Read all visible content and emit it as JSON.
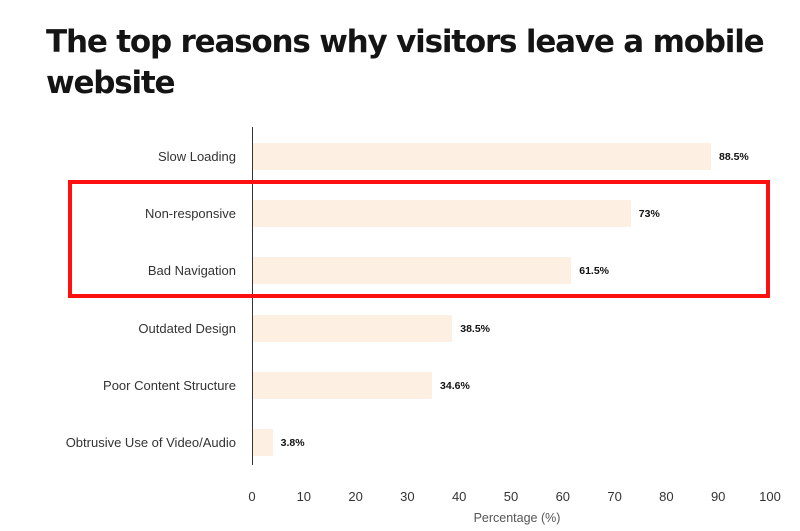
{
  "title": "The top reasons why visitors leave a mobile website",
  "chart_data": {
    "type": "bar",
    "orientation": "horizontal",
    "title": "The top reasons why visitors leave a mobile website",
    "categories": [
      "Slow Loading",
      "Non-responsive",
      "Bad Navigation",
      "Outdated Design",
      "Poor Content Structure",
      "Obtrusive Use of Video/Audio"
    ],
    "values": [
      88.5,
      73,
      61.5,
      38.5,
      34.6,
      3.8
    ],
    "value_labels": [
      "88.5%",
      "73%",
      "61.5%",
      "38.5%",
      "34.6%",
      "3.8%"
    ],
    "xlabel": "Percentage (%)",
    "ylabel": "",
    "xlim": [
      0,
      100
    ],
    "xticks": [
      "0",
      "10",
      "20",
      "30",
      "40",
      "50",
      "60",
      "70",
      "80",
      "90",
      "100"
    ],
    "grid": false,
    "legend": null,
    "bar_color": "#fdf0e3",
    "annotation": {
      "type": "highlight-box",
      "color": "#ff1010",
      "covers": [
        "Non-responsive",
        "Bad Navigation"
      ]
    }
  }
}
